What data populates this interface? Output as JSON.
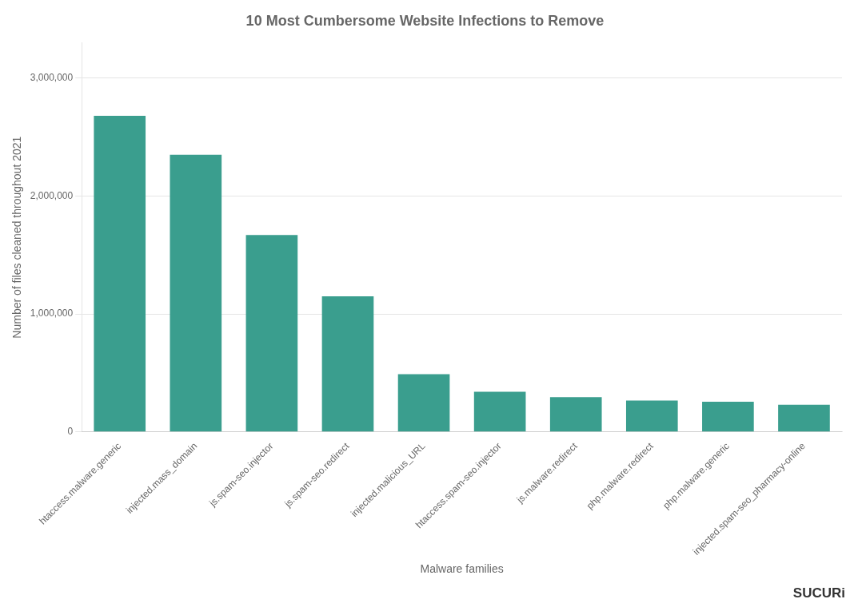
{
  "chart_data": {
    "type": "bar",
    "title": "10 Most Cumbersome Website Infections to Remove",
    "xlabel": "Malware families",
    "ylabel": "Number of files cleaned throughout 2021",
    "categories": [
      "htaccess.malware.generic",
      "injected.mass_domain",
      "js.spam-seo.injector",
      "js.spam-seo.redirect",
      "injected.malicious_URL",
      "htaccess.spam-seo.injector",
      "js.malware.redirect",
      "php.malware.redirect",
      "php.malware.generic",
      "injected.spam-seo_pharmacy-online"
    ],
    "values": [
      2680000,
      2350000,
      1670000,
      1150000,
      490000,
      340000,
      295000,
      265000,
      255000,
      230000
    ],
    "color": "#3a9e8e",
    "ylim": [
      0,
      3300000
    ],
    "yticks": [
      0,
      {
        "value": 1000000,
        "label": "1,000,000"
      },
      {
        "value": 2000000,
        "label": "2,000,000"
      },
      {
        "value": 3000000,
        "label": "3,000,000"
      }
    ],
    "grid": true,
    "annotations": [
      "SUCURi"
    ]
  }
}
